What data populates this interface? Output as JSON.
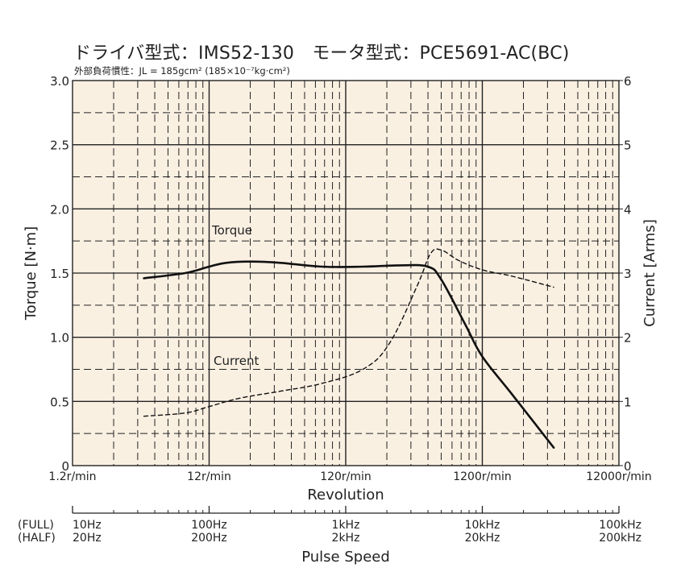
{
  "header": {
    "title": "ドライバ型式：IMS52-130　モータ型式：PCE5691-AC(BC)",
    "subtitle": "外部負荷慣性：JL = 185gcm² (185×10⁻⁷kg·cm²)"
  },
  "colors": {
    "plot_background": "#faf0e2",
    "line": "#111111",
    "grid": "#222222"
  },
  "chart_data": {
    "type": "line",
    "xscale": "log",
    "xlim": [
      1.2,
      12000
    ],
    "grid": true,
    "series": [
      {
        "name": "Torque",
        "axis": "left",
        "style": "solid",
        "x": [
          4.0,
          8.0,
          12.0,
          16.0,
          24.0,
          40.0,
          80.0,
          160.0,
          300.0,
          480.0,
          600.0,
          900.0,
          1200.0,
          2000.0,
          4000.0
        ],
        "y": [
          1.46,
          1.5,
          1.55,
          1.58,
          1.59,
          1.58,
          1.55,
          1.55,
          1.56,
          1.55,
          1.45,
          1.1,
          0.85,
          0.55,
          0.14
        ]
      },
      {
        "name": "Current",
        "axis": "right",
        "style": "dashed",
        "x": [
          4.0,
          8.0,
          12.0,
          20.0,
          40.0,
          80.0,
          160.0,
          250.0,
          400.0,
          500.0,
          600.0,
          800.0,
          1200.0,
          2000.0,
          4000.0
        ],
        "y": [
          0.77,
          0.82,
          0.92,
          1.05,
          1.16,
          1.28,
          1.5,
          1.9,
          2.8,
          3.3,
          3.36,
          3.2,
          3.05,
          2.95,
          2.78
        ]
      }
    ],
    "left_axis": {
      "label": "Torque [N·m]",
      "ylim": [
        0,
        3.0
      ],
      "ticks": [
        "0",
        "0.5",
        "1.0",
        "1.5",
        "2.0",
        "2.5",
        "3.0"
      ]
    },
    "right_axis": {
      "label": "Current [Arms]",
      "ylim": [
        0,
        6
      ],
      "ticks": [
        "0",
        "1",
        "2",
        "3",
        "4",
        "5",
        "6"
      ]
    },
    "x_axis": {
      "label": "Revolution",
      "ticks": [
        "1.2r/min",
        "12r/min",
        "120r/min",
        "1200r/min",
        "12000r/min"
      ]
    },
    "pulse_axis": {
      "label": "Pulse Speed",
      "row_labels": [
        "(FULL)",
        "(HALF)"
      ],
      "full": [
        "10Hz",
        "100Hz",
        "1kHz",
        "10kHz",
        "100kHz"
      ],
      "half": [
        "20Hz",
        "200Hz",
        "2kHz",
        "20kHz",
        "200kHz"
      ]
    },
    "annotations": [
      "Torque",
      "Current"
    ]
  }
}
